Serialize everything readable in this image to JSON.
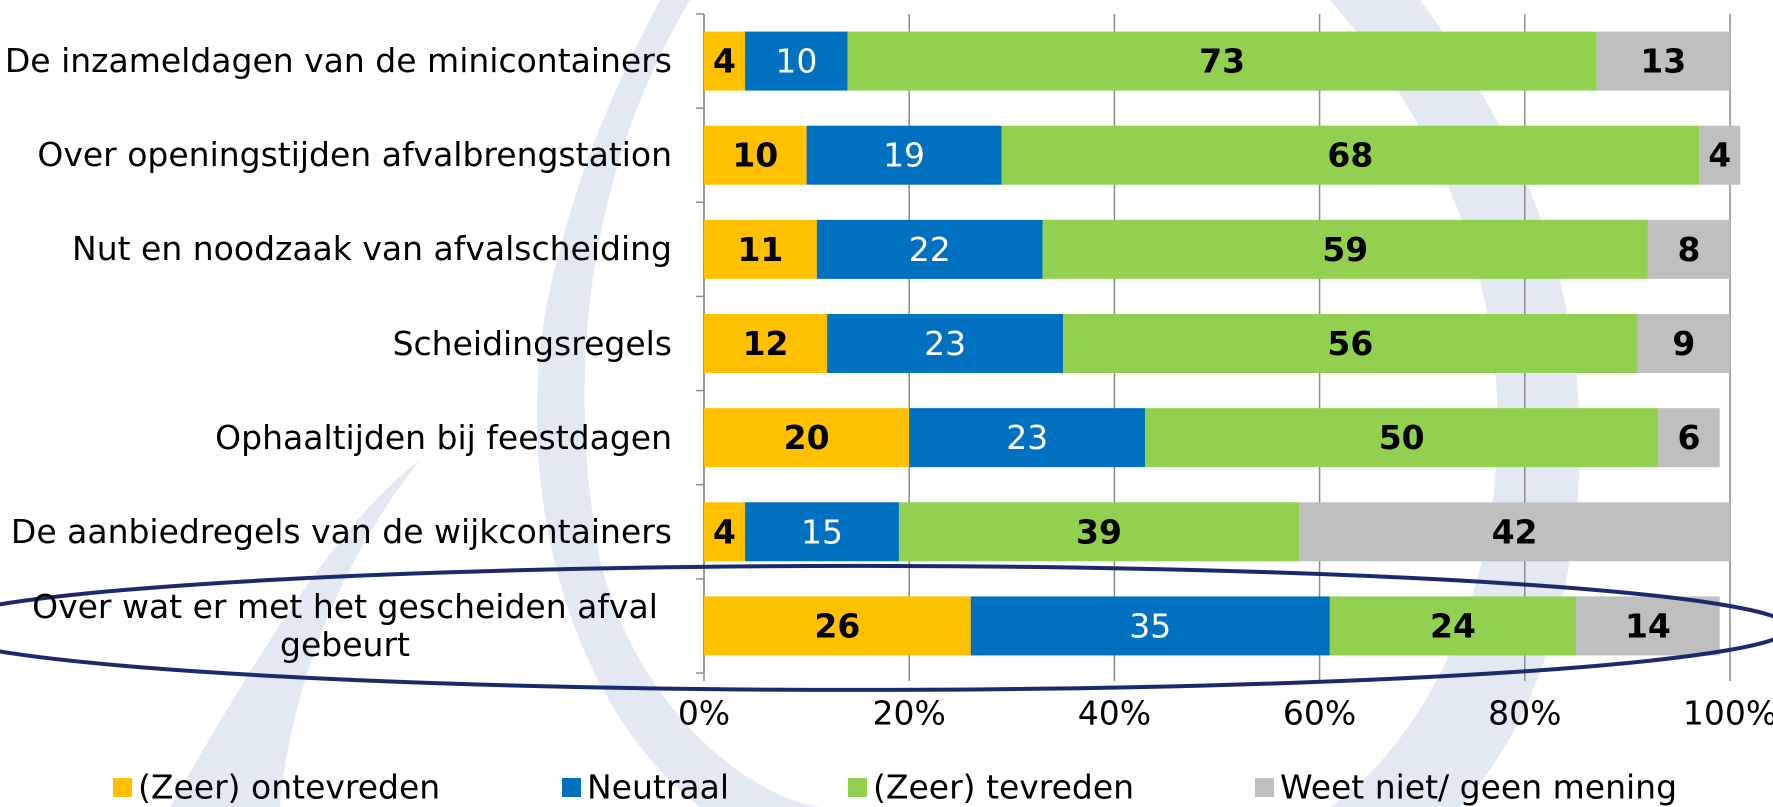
{
  "chart_data": {
    "type": "stacked_bar_horizontal",
    "categories": [
      "De inzameldagen van de minicontainers",
      "Over openingstijden afvalbrengstation",
      "Nut en noodzaak van afvalscheiding",
      "Scheidingsregels",
      "Ophaaltijden bij feestdagen",
      "De aanbiedregels van de wijkcontainers",
      "Over wat er met het gescheiden afval gebeurt"
    ],
    "series": [
      {
        "name": "(Zeer) ontevreden",
        "color": "#FFC000",
        "values": [
          4,
          10,
          11,
          12,
          20,
          4,
          26
        ]
      },
      {
        "name": "Neutraal",
        "color": "#0070C0",
        "values": [
          10,
          19,
          22,
          23,
          23,
          15,
          35
        ]
      },
      {
        "name": "(Zeer) tevreden",
        "color": "#92D050",
        "values": [
          73,
          68,
          59,
          56,
          50,
          39,
          24
        ]
      },
      {
        "name": "Weet niet/ geen mening",
        "color": "#BFBFBF",
        "values": [
          13,
          4,
          8,
          9,
          6,
          42,
          14
        ]
      }
    ],
    "xlim": [
      0,
      100
    ],
    "xticks": [
      {
        "value": 0,
        "label": "0%"
      },
      {
        "value": 20,
        "label": "20%"
      },
      {
        "value": 40,
        "label": "40%"
      },
      {
        "value": 60,
        "label": "60%"
      },
      {
        "value": 80,
        "label": "80%"
      },
      {
        "value": 100,
        "label": "100%"
      }
    ],
    "grid": true,
    "legend": "bottom"
  }
}
